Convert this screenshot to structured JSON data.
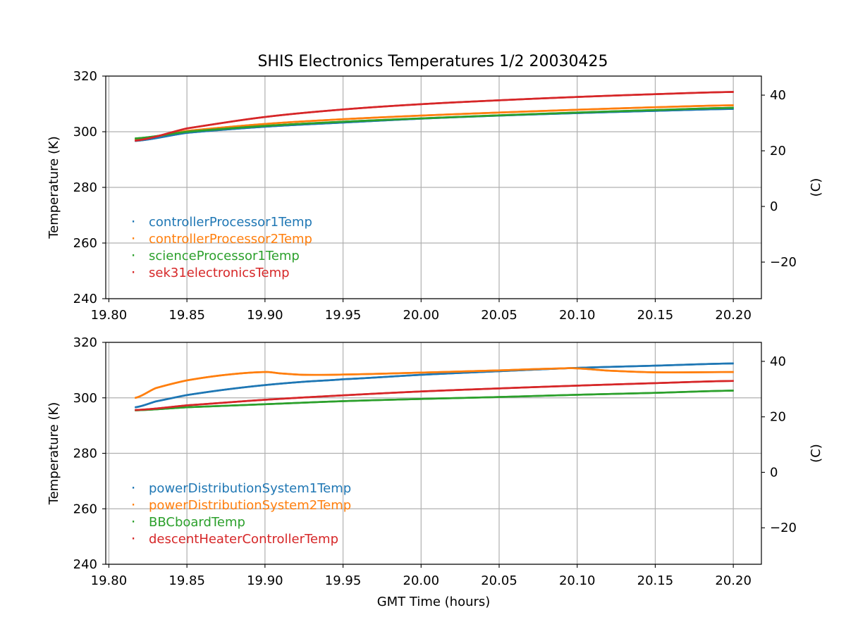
{
  "title": "SHIS Electronics Temperatures 1/2 20030425",
  "colors": {
    "blue": "#1f77b4",
    "orange": "#ff7f0e",
    "green": "#2ca02c",
    "red": "#d62728",
    "grid": "#b0b0b0"
  },
  "chart_data": [
    {
      "type": "scatter",
      "title": "SHIS Electronics Temperatures 1/2 20030425",
      "xlabel": "",
      "ylabel": "Temperature (K)",
      "y2label": "(C)",
      "xlim": [
        19.798,
        20.218
      ],
      "ylim": [
        240,
        320
      ],
      "y2lim": [
        -33.15,
        46.85
      ],
      "xticks": [
        19.8,
        19.85,
        19.9,
        19.95,
        20.0,
        20.05,
        20.1,
        20.15,
        20.2
      ],
      "xtick_labels": [
        "19.80",
        "19.85",
        "19.90",
        "19.95",
        "20.00",
        "20.05",
        "20.10",
        "20.15",
        "20.20"
      ],
      "yticks": [
        240,
        260,
        280,
        300,
        320
      ],
      "ytick_labels": [
        "240",
        "260",
        "280",
        "300",
        "320"
      ],
      "y2ticks": [
        -20,
        0,
        20,
        40
      ],
      "y2tick_labels": [
        "−20",
        "0",
        "20",
        "40"
      ],
      "grid": true,
      "legend_position": "lower-left",
      "series": [
        {
          "name": "controllerProcessor1Temp",
          "color": "#1f77b4",
          "x": [
            19.817,
            19.85,
            19.9,
            19.95,
            20.0,
            20.05,
            20.1,
            20.15,
            20.2
          ],
          "y": [
            296.7,
            299.6,
            301.8,
            303.3,
            304.7,
            305.8,
            306.7,
            307.5,
            308.2
          ]
        },
        {
          "name": "controllerProcessor2Temp",
          "color": "#ff7f0e",
          "x": [
            19.817,
            19.85,
            19.9,
            19.95,
            20.0,
            20.05,
            20.1,
            20.15,
            20.2
          ],
          "y": [
            297.3,
            300.3,
            302.8,
            304.5,
            305.8,
            306.9,
            307.9,
            308.8,
            309.5
          ]
        },
        {
          "name": "scienceProcessor1Temp",
          "color": "#2ca02c",
          "x": [
            19.817,
            19.85,
            19.9,
            19.95,
            20.0,
            20.05,
            20.1,
            20.15,
            20.2
          ],
          "y": [
            297.6,
            300.0,
            302.1,
            303.6,
            304.8,
            305.9,
            306.9,
            307.8,
            308.6
          ]
        },
        {
          "name": "sek31electronicsTemp",
          "color": "#d62728",
          "x": [
            19.817,
            19.85,
            19.9,
            19.95,
            20.0,
            20.05,
            20.1,
            20.15,
            20.2
          ],
          "y": [
            296.8,
            301.2,
            305.3,
            308.0,
            309.9,
            311.3,
            312.5,
            313.5,
            314.3
          ]
        }
      ]
    },
    {
      "type": "scatter",
      "title": "",
      "xlabel": "GMT Time (hours)",
      "ylabel": "Temperature (K)",
      "y2label": "(C)",
      "xlim": [
        19.798,
        20.218
      ],
      "ylim": [
        240,
        320
      ],
      "y2lim": [
        -33.15,
        46.85
      ],
      "xticks": [
        19.8,
        19.85,
        19.9,
        19.95,
        20.0,
        20.05,
        20.1,
        20.15,
        20.2
      ],
      "xtick_labels": [
        "19.80",
        "19.85",
        "19.90",
        "19.95",
        "20.00",
        "20.05",
        "20.10",
        "20.15",
        "20.20"
      ],
      "yticks": [
        240,
        260,
        280,
        300,
        320
      ],
      "ytick_labels": [
        "240",
        "260",
        "280",
        "300",
        "320"
      ],
      "y2ticks": [
        -20,
        0,
        20,
        40
      ],
      "y2tick_labels": [
        "−20",
        "0",
        "20",
        "40"
      ],
      "grid": true,
      "legend_position": "lower-left",
      "series": [
        {
          "name": "powerDistributionSystem1Temp",
          "color": "#1f77b4",
          "x": [
            19.817,
            19.83,
            19.85,
            19.875,
            19.9,
            19.925,
            19.95,
            20.0,
            20.05,
            20.1,
            20.15,
            20.2
          ],
          "y": [
            296.6,
            298.7,
            301.0,
            303.0,
            304.6,
            305.8,
            306.7,
            308.3,
            309.6,
            310.8,
            311.6,
            312.4
          ]
        },
        {
          "name": "powerDistributionSystem2Temp",
          "color": "#ff7f0e",
          "x": [
            19.817,
            19.83,
            19.85,
            19.875,
            19.9,
            19.91,
            19.925,
            19.95,
            20.0,
            20.05,
            20.09,
            20.1,
            20.12,
            20.15,
            20.2
          ],
          "y": [
            300.0,
            303.5,
            306.3,
            308.3,
            309.3,
            308.8,
            308.3,
            308.4,
            309.1,
            309.9,
            310.6,
            310.6,
            309.8,
            309.2,
            309.3
          ]
        },
        {
          "name": "BBCboardTemp",
          "color": "#2ca02c",
          "x": [
            19.817,
            19.85,
            19.9,
            19.95,
            20.0,
            20.05,
            20.1,
            20.15,
            20.2
          ],
          "y": [
            295.5,
            296.6,
            297.7,
            298.8,
            299.6,
            300.3,
            301.1,
            301.8,
            302.6
          ]
        },
        {
          "name": "descentHeaterControllerTemp",
          "color": "#d62728",
          "x": [
            19.817,
            19.85,
            19.9,
            19.95,
            20.0,
            20.05,
            20.1,
            20.15,
            20.2
          ],
          "y": [
            295.6,
            297.3,
            299.3,
            300.9,
            302.3,
            303.4,
            304.4,
            305.3,
            306.1
          ]
        }
      ]
    }
  ]
}
